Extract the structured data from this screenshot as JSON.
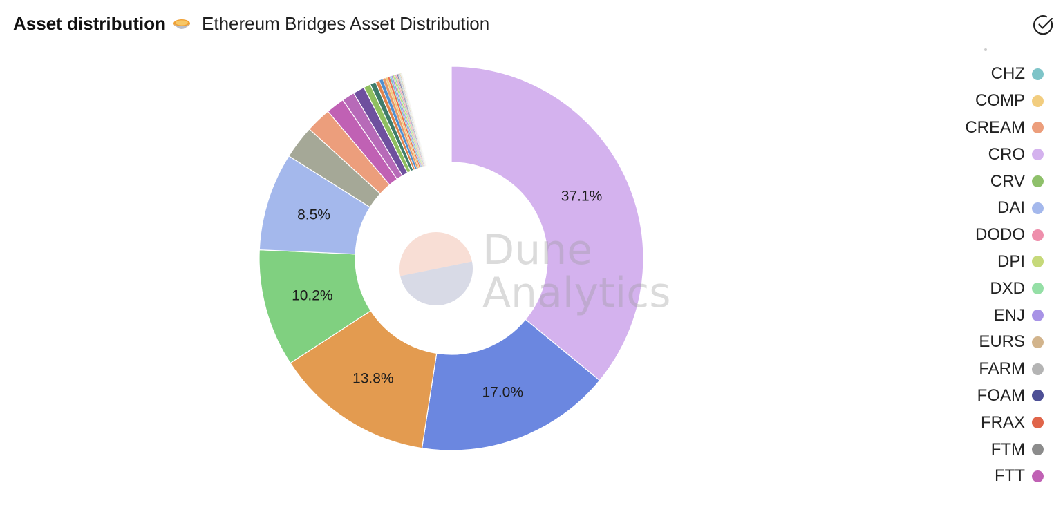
{
  "header": {
    "dashboard_title": "Asset distribution",
    "chart_title": "Ethereum Bridges Asset Distribution",
    "emoji_icon": "pie-emoji-icon"
  },
  "watermark": {
    "line1": "Dune",
    "line2": "Analytics"
  },
  "legend": {
    "items": [
      {
        "label": "CHZ",
        "color": "#7ec4c8"
      },
      {
        "label": "COMP",
        "color": "#f2cd7f"
      },
      {
        "label": "CREAM",
        "color": "#ec9e7c"
      },
      {
        "label": "CRO",
        "color": "#d4b2ee"
      },
      {
        "label": "CRV",
        "color": "#8ec06a"
      },
      {
        "label": "DAI",
        "color": "#a4b8ec"
      },
      {
        "label": "DODO",
        "color": "#ee8fac"
      },
      {
        "label": "DPI",
        "color": "#c6d97a"
      },
      {
        "label": "DXD",
        "color": "#95dfa6"
      },
      {
        "label": "ENJ",
        "color": "#a893e6"
      },
      {
        "label": "EURS",
        "color": "#d2b48c"
      },
      {
        "label": "FARM",
        "color": "#b4b4b4"
      },
      {
        "label": "FOAM",
        "color": "#4e5096"
      },
      {
        "label": "FRAX",
        "color": "#e0654a"
      },
      {
        "label": "FTM",
        "color": "#8c8c8c"
      },
      {
        "label": "FTT",
        "color": "#c061b4"
      }
    ]
  },
  "chart_data": {
    "type": "pie",
    "title": "Ethereum Bridges Asset Distribution",
    "donut": true,
    "legend_position": "right",
    "slices": [
      {
        "value": 37.1,
        "label": "37.1%",
        "color": "#d4b2ee"
      },
      {
        "value": 17.0,
        "label": "17.0%",
        "color": "#6b87e0"
      },
      {
        "value": 13.8,
        "label": "13.8%",
        "color": "#e39b50"
      },
      {
        "value": 10.2,
        "label": "10.2%",
        "color": "#80d080"
      },
      {
        "value": 8.5,
        "label": "8.5%",
        "color": "#a4b8ec"
      },
      {
        "value": 2.9,
        "label": "",
        "color": "#a5a897"
      },
      {
        "value": 2.2,
        "label": "",
        "color": "#ec9e7c"
      },
      {
        "value": 1.6,
        "label": "",
        "color": "#c061b4"
      },
      {
        "value": 1.1,
        "label": "",
        "color": "#b76ab8"
      },
      {
        "value": 1.0,
        "label": "",
        "color": "#6e509e"
      },
      {
        "value": 0.6,
        "label": "",
        "color": "#8fbf5f"
      },
      {
        "value": 0.5,
        "label": "",
        "color": "#3f7c6a"
      },
      {
        "value": 0.35,
        "label": "",
        "color": "#e0834a"
      },
      {
        "value": 0.3,
        "label": "",
        "color": "#4f8fd0"
      },
      {
        "value": 0.25,
        "label": "",
        "color": "#e79a6c"
      },
      {
        "value": 0.2,
        "label": "",
        "color": "#f2cd7f"
      },
      {
        "value": 0.18,
        "label": "",
        "color": "#ec7050"
      },
      {
        "value": 0.15,
        "label": "",
        "color": "#7ec4c8"
      },
      {
        "value": 0.13,
        "label": "",
        "color": "#a893e6"
      },
      {
        "value": 0.12,
        "label": "",
        "color": "#c6d97a"
      },
      {
        "value": 0.1,
        "label": "",
        "color": "#95dfa6"
      },
      {
        "value": 0.09,
        "label": "",
        "color": "#ee8fac"
      },
      {
        "value": 0.08,
        "label": "",
        "color": "#d2b48c"
      },
      {
        "value": 0.07,
        "label": "",
        "color": "#4e5096"
      },
      {
        "value": 0.06,
        "label": "",
        "color": "#8c8c8c"
      },
      {
        "value": 0.05,
        "label": "",
        "color": "#b4b4b4"
      },
      {
        "value": 0.05,
        "label": "",
        "color": "#7ec4c8"
      },
      {
        "value": 0.04,
        "label": "",
        "color": "#e0654a"
      },
      {
        "value": 0.04,
        "label": "",
        "color": "#8ec06a"
      },
      {
        "value": 0.03,
        "label": "",
        "color": "#f2cd7f"
      },
      {
        "value": 0.03,
        "label": "",
        "color": "#a4b8ec"
      },
      {
        "value": 0.03,
        "label": "",
        "color": "#ec9e7c"
      },
      {
        "value": 0.02,
        "label": "",
        "color": "#c061b4"
      },
      {
        "value": 0.02,
        "label": "",
        "color": "#95dfa6"
      }
    ]
  }
}
